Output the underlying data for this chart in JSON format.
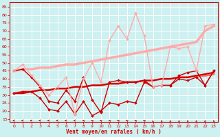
{
  "background_color": "#cdf0f0",
  "grid_color": "#ffffff",
  "xlabel": "Vent moyen/en rafales ( km/h )",
  "xlabel_color": "#cc0000",
  "yticks": [
    15,
    20,
    25,
    30,
    35,
    40,
    45,
    50,
    55,
    60,
    65,
    70,
    75,
    80,
    85
  ],
  "xticks": [
    0,
    1,
    2,
    3,
    4,
    5,
    6,
    7,
    8,
    9,
    10,
    11,
    12,
    13,
    14,
    15,
    16,
    17,
    18,
    19,
    20,
    21,
    22,
    23
  ],
  "ylim": [
    13,
    88
  ],
  "xlim": [
    -0.5,
    23.5
  ],
  "series": [
    {
      "y": [
        45,
        46,
        46,
        47,
        47,
        48,
        49,
        49,
        50,
        51,
        52,
        53,
        54,
        55,
        56,
        57,
        58,
        59,
        60,
        61,
        62,
        63,
        70,
        73
      ],
      "color": "#ffaaaa",
      "lw": 2.5,
      "marker": null,
      "zorder": 2
    },
    {
      "y": [
        31,
        32,
        32,
        33,
        33,
        34,
        34,
        35,
        35,
        36,
        36,
        37,
        37,
        38,
        38,
        39,
        39,
        40,
        40,
        41,
        41,
        42,
        42,
        43
      ],
      "color": "#ff6666",
      "lw": 2.0,
      "marker": null,
      "zorder": 2
    },
    {
      "y": [
        31,
        31,
        32,
        33,
        33,
        34,
        34,
        35,
        35,
        36,
        36,
        37,
        37,
        38,
        38,
        39,
        39,
        40,
        40,
        41,
        41,
        42,
        43,
        44
      ],
      "color": "#cc0000",
      "lw": 1.5,
      "marker": null,
      "zorder": 2
    },
    {
      "y": [
        45,
        46,
        41,
        35,
        26,
        25,
        33,
        26,
        41,
        27,
        19,
        38,
        39,
        38,
        38,
        39,
        35,
        36,
        36,
        42,
        44,
        45,
        36,
        45
      ],
      "color": "#cc0000",
      "lw": 1.0,
      "marker": "D",
      "markersize": 2,
      "zorder": 3
    },
    {
      "y": [
        31,
        32,
        32,
        28,
        21,
        20,
        26,
        18,
        26,
        17,
        20,
        25,
        24,
        26,
        25,
        38,
        35,
        36,
        36,
        40,
        39,
        41,
        36,
        45
      ],
      "color": "#cc0000",
      "lw": 1.0,
      "marker": "D",
      "markersize": 2,
      "zorder": 3
    },
    {
      "y": [
        45,
        49,
        42,
        36,
        30,
        35,
        41,
        18,
        40,
        50,
        38,
        64,
        73,
        65,
        81,
        67,
        35,
        36,
        60,
        59,
        60,
        45,
        73,
        74
      ],
      "color": "#ffaaaa",
      "lw": 1.0,
      "marker": "D",
      "markersize": 2,
      "zorder": 3
    }
  ],
  "arrow_angles_deg": [
    180,
    180,
    180,
    180,
    180,
    180,
    180,
    180,
    135,
    135,
    135,
    135,
    135,
    135,
    135,
    135,
    90,
    90,
    90,
    90,
    90,
    90,
    90,
    90
  ],
  "arrow_color": "#cc0000"
}
